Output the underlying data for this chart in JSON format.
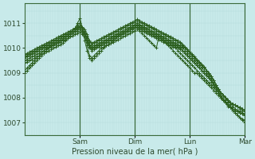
{
  "bg_color": "#c8eaea",
  "plot_bg_color": "#c8eaea",
  "grid_color_v": "#b0d8d8",
  "grid_color_h": "#b0d8d8",
  "line_color": "#2d6020",
  "marker": "+",
  "xlabel": "Pression niveau de la mer( hPa )",
  "ylim": [
    1006.5,
    1011.8
  ],
  "yticks": [
    1007,
    1008,
    1009,
    1010,
    1011
  ],
  "n_total_hours": 96,
  "sam_hour": 24,
  "dim_hour": 48,
  "lun_hour": 72,
  "mar_hour": 96,
  "series": [
    [
      1009.0,
      1009.1,
      1009.2,
      1009.3,
      1009.4,
      1009.5,
      1009.6,
      1009.7,
      1009.8,
      1009.9,
      1010.0,
      1010.1,
      1010.15,
      1010.2,
      1010.25,
      1010.3,
      1010.35,
      1010.4,
      1010.5,
      1010.6,
      1010.7,
      1010.8,
      1011.0,
      1011.2,
      1010.8,
      1010.3,
      1009.9,
      1009.6,
      1009.5,
      1009.6,
      1009.7,
      1009.8,
      1009.9,
      1010.0,
      1010.1,
      1010.15,
      1010.2,
      1010.25,
      1010.3,
      1010.35,
      1010.4,
      1010.45,
      1010.5,
      1010.55,
      1010.6,
      1010.65,
      1010.7,
      1010.75,
      1010.7,
      1010.6,
      1010.5,
      1010.4,
      1010.3,
      1010.2,
      1010.1,
      1010.0,
      1010.5,
      1010.4,
      1010.3,
      1010.2,
      1010.1,
      1010.0,
      1009.9,
      1009.8,
      1009.7,
      1009.6,
      1009.5,
      1009.4,
      1009.3,
      1009.2,
      1009.1,
      1009.0,
      1009.0,
      1008.9,
      1008.8,
      1008.7,
      1008.6,
      1008.5,
      1008.4,
      1008.3,
      1008.2,
      1008.1,
      1008.0,
      1007.9,
      1007.8,
      1007.7,
      1007.6,
      1007.5,
      1007.4,
      1007.3,
      1007.2,
      1007.1,
      1007.0
    ],
    [
      1009.1,
      1009.2,
      1009.3,
      1009.4,
      1009.5,
      1009.6,
      1009.7,
      1009.8,
      1009.9,
      1010.0,
      1010.05,
      1010.1,
      1010.15,
      1010.2,
      1010.25,
      1010.3,
      1010.35,
      1010.4,
      1010.5,
      1010.6,
      1010.7,
      1010.8,
      1010.9,
      1011.0,
      1010.8,
      1010.5,
      1010.1,
      1009.7,
      1009.6,
      1009.7,
      1009.8,
      1009.9,
      1010.0,
      1010.05,
      1010.1,
      1010.15,
      1010.2,
      1010.3,
      1010.4,
      1010.5,
      1010.55,
      1010.6,
      1010.65,
      1010.7,
      1010.75,
      1010.8,
      1010.8,
      1010.8,
      1010.75,
      1010.7,
      1010.65,
      1010.6,
      1010.55,
      1010.5,
      1010.45,
      1010.4,
      1010.35,
      1010.3,
      1010.25,
      1010.2,
      1010.15,
      1010.1,
      1010.05,
      1010.0,
      1009.9,
      1009.8,
      1009.7,
      1009.6,
      1009.5,
      1009.4,
      1009.3,
      1009.2,
      1009.1,
      1009.0,
      1008.9,
      1008.8,
      1008.7,
      1008.6,
      1008.5,
      1008.4,
      1008.3,
      1008.2,
      1008.0,
      1007.9,
      1007.8,
      1007.7,
      1007.6,
      1007.5,
      1007.4,
      1007.3,
      1007.2,
      1007.15,
      1007.1
    ],
    [
      1009.4,
      1009.45,
      1009.5,
      1009.55,
      1009.6,
      1009.65,
      1009.7,
      1009.75,
      1009.8,
      1009.85,
      1009.9,
      1009.95,
      1010.0,
      1010.05,
      1010.1,
      1010.15,
      1010.2,
      1010.3,
      1010.4,
      1010.5,
      1010.6,
      1010.7,
      1010.8,
      1010.9,
      1010.75,
      1010.6,
      1010.3,
      1010.0,
      1009.9,
      1009.95,
      1010.0,
      1010.05,
      1010.1,
      1010.15,
      1010.2,
      1010.25,
      1010.3,
      1010.35,
      1010.4,
      1010.45,
      1010.5,
      1010.55,
      1010.6,
      1010.65,
      1010.7,
      1010.75,
      1010.8,
      1010.85,
      1010.8,
      1010.75,
      1010.7,
      1010.65,
      1010.6,
      1010.55,
      1010.5,
      1010.45,
      1010.4,
      1010.35,
      1010.3,
      1010.25,
      1010.2,
      1010.15,
      1010.1,
      1010.05,
      1010.0,
      1009.95,
      1009.9,
      1009.8,
      1009.7,
      1009.6,
      1009.5,
      1009.4,
      1009.3,
      1009.2,
      1009.1,
      1009.0,
      1008.9,
      1008.8,
      1008.7,
      1008.55,
      1008.4,
      1008.25,
      1008.1,
      1007.95,
      1007.8,
      1007.65,
      1007.6,
      1007.55,
      1007.5,
      1007.45,
      1007.4,
      1007.35,
      1007.3
    ],
    [
      1009.6,
      1009.65,
      1009.7,
      1009.75,
      1009.8,
      1009.85,
      1009.9,
      1009.95,
      1010.0,
      1010.05,
      1010.1,
      1010.15,
      1010.2,
      1010.25,
      1010.3,
      1010.35,
      1010.4,
      1010.45,
      1010.5,
      1010.55,
      1010.6,
      1010.65,
      1010.7,
      1010.75,
      1010.65,
      1010.55,
      1010.35,
      1010.1,
      1010.0,
      1010.05,
      1010.1,
      1010.15,
      1010.2,
      1010.25,
      1010.3,
      1010.35,
      1010.4,
      1010.45,
      1010.5,
      1010.55,
      1010.6,
      1010.65,
      1010.7,
      1010.75,
      1010.8,
      1010.85,
      1010.9,
      1010.95,
      1010.9,
      1010.85,
      1010.8,
      1010.75,
      1010.7,
      1010.65,
      1010.6,
      1010.55,
      1010.5,
      1010.45,
      1010.4,
      1010.35,
      1010.3,
      1010.25,
      1010.2,
      1010.15,
      1010.1,
      1010.05,
      1010.0,
      1009.9,
      1009.8,
      1009.7,
      1009.6,
      1009.5,
      1009.4,
      1009.3,
      1009.2,
      1009.1,
      1009.0,
      1008.85,
      1008.7,
      1008.55,
      1008.4,
      1008.3,
      1008.2,
      1008.1,
      1008.0,
      1007.9,
      1007.8,
      1007.75,
      1007.7,
      1007.65,
      1007.6,
      1007.55,
      1007.5
    ],
    [
      1009.65,
      1009.7,
      1009.75,
      1009.8,
      1009.85,
      1009.9,
      1009.95,
      1010.0,
      1010.05,
      1010.1,
      1010.15,
      1010.2,
      1010.25,
      1010.3,
      1010.35,
      1010.4,
      1010.45,
      1010.5,
      1010.55,
      1010.6,
      1010.65,
      1010.7,
      1010.75,
      1010.8,
      1010.7,
      1010.6,
      1010.4,
      1010.15,
      1010.05,
      1010.1,
      1010.15,
      1010.2,
      1010.25,
      1010.3,
      1010.35,
      1010.4,
      1010.45,
      1010.5,
      1010.55,
      1010.6,
      1010.65,
      1010.7,
      1010.75,
      1010.8,
      1010.85,
      1010.9,
      1010.95,
      1011.0,
      1010.95,
      1010.9,
      1010.85,
      1010.8,
      1010.75,
      1010.7,
      1010.65,
      1010.6,
      1010.55,
      1010.5,
      1010.45,
      1010.4,
      1010.35,
      1010.3,
      1010.25,
      1010.2,
      1010.15,
      1010.1,
      1010.05,
      1010.0,
      1009.9,
      1009.8,
      1009.7,
      1009.6,
      1009.5,
      1009.4,
      1009.3,
      1009.2,
      1009.1,
      1009.0,
      1008.85,
      1008.7,
      1008.5,
      1008.35,
      1008.2,
      1008.1,
      1008.0,
      1007.9,
      1007.8,
      1007.75,
      1007.7,
      1007.65,
      1007.6,
      1007.55,
      1007.5
    ],
    [
      1009.7,
      1009.75,
      1009.8,
      1009.85,
      1009.9,
      1009.95,
      1010.0,
      1010.05,
      1010.1,
      1010.15,
      1010.2,
      1010.25,
      1010.3,
      1010.35,
      1010.4,
      1010.45,
      1010.5,
      1010.55,
      1010.6,
      1010.65,
      1010.7,
      1010.75,
      1010.8,
      1010.85,
      1010.8,
      1010.7,
      1010.5,
      1010.25,
      1010.15,
      1010.2,
      1010.25,
      1010.3,
      1010.35,
      1010.4,
      1010.45,
      1010.5,
      1010.55,
      1010.6,
      1010.65,
      1010.7,
      1010.75,
      1010.8,
      1010.85,
      1010.9,
      1010.95,
      1011.0,
      1011.05,
      1011.1,
      1011.05,
      1011.0,
      1010.95,
      1010.9,
      1010.85,
      1010.8,
      1010.75,
      1010.7,
      1010.65,
      1010.6,
      1010.55,
      1010.5,
      1010.45,
      1010.4,
      1010.35,
      1010.3,
      1010.25,
      1010.2,
      1010.1,
      1010.0,
      1009.9,
      1009.8,
      1009.7,
      1009.6,
      1009.5,
      1009.4,
      1009.3,
      1009.2,
      1009.1,
      1009.0,
      1008.85,
      1008.7,
      1008.5,
      1008.35,
      1008.2,
      1008.1,
      1008.0,
      1007.9,
      1007.8,
      1007.75,
      1007.7,
      1007.65,
      1007.55,
      1007.5,
      1007.45
    ],
    [
      1009.75,
      1009.8,
      1009.85,
      1009.9,
      1009.95,
      1010.0,
      1010.05,
      1010.1,
      1010.15,
      1010.2,
      1010.25,
      1010.3,
      1010.35,
      1010.4,
      1010.45,
      1010.5,
      1010.55,
      1010.6,
      1010.65,
      1010.7,
      1010.75,
      1010.8,
      1010.85,
      1010.9,
      1010.85,
      1010.75,
      1010.55,
      1010.3,
      1010.2,
      1010.25,
      1010.3,
      1010.35,
      1010.4,
      1010.45,
      1010.5,
      1010.55,
      1010.6,
      1010.65,
      1010.7,
      1010.75,
      1010.8,
      1010.85,
      1010.9,
      1010.95,
      1011.0,
      1011.05,
      1011.1,
      1011.15,
      1011.1,
      1011.05,
      1011.0,
      1010.95,
      1010.9,
      1010.85,
      1010.8,
      1010.75,
      1010.7,
      1010.65,
      1010.6,
      1010.55,
      1010.5,
      1010.45,
      1010.4,
      1010.35,
      1010.3,
      1010.25,
      1010.15,
      1010.05,
      1009.95,
      1009.85,
      1009.75,
      1009.65,
      1009.55,
      1009.45,
      1009.35,
      1009.25,
      1009.1,
      1008.95,
      1008.8,
      1008.65,
      1008.5,
      1008.35,
      1008.2,
      1008.1,
      1007.95,
      1007.85,
      1007.75,
      1007.65,
      1007.55,
      1007.5,
      1007.45,
      1007.4,
      1007.35
    ],
    [
      1009.5,
      1009.55,
      1009.6,
      1009.65,
      1009.7,
      1009.75,
      1009.8,
      1009.85,
      1009.9,
      1009.95,
      1010.0,
      1010.05,
      1010.1,
      1010.15,
      1010.2,
      1010.25,
      1010.3,
      1010.35,
      1010.4,
      1010.45,
      1010.5,
      1010.55,
      1010.6,
      1010.65,
      1010.55,
      1010.45,
      1010.25,
      1010.05,
      1009.95,
      1010.0,
      1010.05,
      1010.1,
      1010.15,
      1010.2,
      1010.25,
      1010.3,
      1010.35,
      1010.4,
      1010.45,
      1010.5,
      1010.55,
      1010.6,
      1010.65,
      1010.7,
      1010.75,
      1010.8,
      1010.85,
      1010.9,
      1010.85,
      1010.8,
      1010.75,
      1010.7,
      1010.65,
      1010.6,
      1010.55,
      1010.5,
      1010.45,
      1010.4,
      1010.35,
      1010.3,
      1010.25,
      1010.2,
      1010.15,
      1010.1,
      1010.05,
      1010.0,
      1009.9,
      1009.8,
      1009.7,
      1009.6,
      1009.5,
      1009.4,
      1009.3,
      1009.2,
      1009.1,
      1009.0,
      1008.9,
      1008.8,
      1008.65,
      1008.5,
      1008.35,
      1008.2,
      1008.05,
      1007.95,
      1007.85,
      1007.75,
      1007.65,
      1007.55,
      1007.5,
      1007.45,
      1007.4,
      1007.35,
      1007.3
    ]
  ]
}
